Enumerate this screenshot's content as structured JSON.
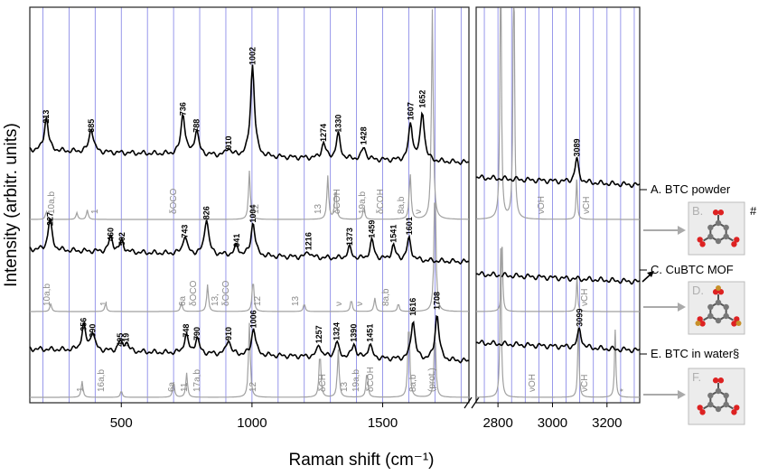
{
  "chart_data": {
    "type": "line",
    "ylabel": "Intensity (arbitr. units)",
    "xlabel": "Raman shift (cm⁻¹)",
    "x_ticks_left": [
      500,
      1000,
      1500
    ],
    "x_ticks_right": [
      2800,
      3000,
      3200
    ],
    "xlim_left": [
      150,
      1830
    ],
    "xlim_right": [
      2720,
      3320
    ],
    "grid": true,
    "panels": [
      {
        "label": "A. BTC powder",
        "baseline": 0.0,
        "exp_peaks": [
          {
            "x": 213,
            "h": 0.22
          },
          {
            "x": 385,
            "h": 0.16
          },
          {
            "x": 736,
            "h": 0.27
          },
          {
            "x": 788,
            "h": 0.16
          },
          {
            "x": 910,
            "h": 0.05
          },
          {
            "x": 1002,
            "h": 0.6
          },
          {
            "x": 1274,
            "h": 0.1
          },
          {
            "x": 1330,
            "h": 0.16
          },
          {
            "x": 1428,
            "h": 0.08
          },
          {
            "x": 1607,
            "h": 0.24
          },
          {
            "x": 1652,
            "h": 0.32
          },
          {
            "x": 3089,
            "h": 0.15
          }
        ],
        "calc_peaks": [
          {
            "x": 213,
            "h": 0.06
          },
          {
            "x": 330,
            "h": 0.05
          },
          {
            "x": 370,
            "h": 0.07
          },
          {
            "x": 990,
            "h": 0.36
          },
          {
            "x": 1290,
            "h": 0.32
          },
          {
            "x": 1320,
            "h": 0.24
          },
          {
            "x": 1428,
            "h": 0.1
          },
          {
            "x": 1605,
            "h": 0.35
          },
          {
            "x": 1690,
            "h": 1.55
          },
          {
            "x": 2810,
            "h": 2.2
          },
          {
            "x": 2858,
            "h": 2.2
          },
          {
            "x": 3089,
            "h": 0.3
          }
        ],
        "peak_labels": [
          "213",
          "385",
          "736",
          "788",
          "910",
          "1002",
          "1274",
          "1330",
          "1428",
          "1607",
          "1652",
          "3089"
        ],
        "mode_labels": [
          "10a,b",
          "1",
          "δOCO",
          "12",
          "13",
          "δCOH",
          "19a,b",
          "δCOH",
          "8a,b",
          "ν",
          "νOH",
          "νCH"
        ]
      },
      {
        "label": "C. CuBTC MOF",
        "baseline": 0.0,
        "exp_peaks": [
          {
            "x": 227,
            "h": 0.2
          },
          {
            "x": 460,
            "h": 0.1
          },
          {
            "x": 502,
            "h": 0.07
          },
          {
            "x": 743,
            "h": 0.12
          },
          {
            "x": 826,
            "h": 0.24
          },
          {
            "x": 941,
            "h": 0.06
          },
          {
            "x": 1004,
            "h": 0.22
          },
          {
            "x": 1216,
            "h": 0.04
          },
          {
            "x": 1373,
            "h": 0.07
          },
          {
            "x": 1459,
            "h": 0.12
          },
          {
            "x": 1541,
            "h": 0.09
          },
          {
            "x": 1601,
            "h": 0.14
          }
        ],
        "calc_peaks": [
          {
            "x": 230,
            "h": 0.06
          },
          {
            "x": 440,
            "h": 0.06
          },
          {
            "x": 730,
            "h": 0.07
          },
          {
            "x": 830,
            "h": 0.2
          },
          {
            "x": 1004,
            "h": 0.25
          },
          {
            "x": 1200,
            "h": 0.06
          },
          {
            "x": 1380,
            "h": 0.09
          },
          {
            "x": 1470,
            "h": 0.1
          },
          {
            "x": 1560,
            "h": 0.06
          },
          {
            "x": 1700,
            "h": 1.0
          },
          {
            "x": 2815,
            "h": 0.5
          },
          {
            "x": 3090,
            "h": 0.25
          }
        ],
        "peak_labels": [
          "227",
          "460",
          "502",
          "743",
          "826",
          "941",
          "1004",
          "1216",
          "1373",
          "1459",
          "1541",
          "1601"
        ],
        "mode_labels": [
          "10a,b",
          "1",
          "6a",
          "δOCO",
          "13,",
          "δOCO",
          "12",
          "13",
          "ν",
          "ν",
          "8a,b",
          "νCH"
        ]
      },
      {
        "label": "E. BTC in water§",
        "baseline": 0.0,
        "exp_peaks": [
          {
            "x": 356,
            "h": 0.16
          },
          {
            "x": 390,
            "h": 0.12
          },
          {
            "x": 495,
            "h": 0.06
          },
          {
            "x": 519,
            "h": 0.06
          },
          {
            "x": 748,
            "h": 0.12
          },
          {
            "x": 790,
            "h": 0.1
          },
          {
            "x": 910,
            "h": 0.1
          },
          {
            "x": 1006,
            "h": 0.18
          },
          {
            "x": 1257,
            "h": 0.08
          },
          {
            "x": 1324,
            "h": 0.1
          },
          {
            "x": 1390,
            "h": 0.09
          },
          {
            "x": 1451,
            "h": 0.09
          },
          {
            "x": 1616,
            "h": 0.26
          },
          {
            "x": 1708,
            "h": 0.3
          },
          {
            "x": 3099,
            "h": 0.12
          }
        ],
        "calc_peaks": [
          {
            "x": 350,
            "h": 0.12
          },
          {
            "x": 500,
            "h": 0.05
          },
          {
            "x": 700,
            "h": 0.12
          },
          {
            "x": 750,
            "h": 0.18
          },
          {
            "x": 990,
            "h": 0.55
          },
          {
            "x": 1260,
            "h": 0.35
          },
          {
            "x": 1330,
            "h": 0.35
          },
          {
            "x": 1440,
            "h": 0.2
          },
          {
            "x": 1600,
            "h": 0.6
          },
          {
            "x": 1700,
            "h": 0.5
          },
          {
            "x": 2810,
            "h": 1.1
          },
          {
            "x": 3095,
            "h": 0.55
          },
          {
            "x": 3230,
            "h": 0.5
          }
        ],
        "peak_labels": [
          "356",
          "390",
          "495",
          "519",
          "748",
          "790",
          "910",
          "1006",
          "1257",
          "1324",
          "1390",
          "1451",
          "1616",
          "1708",
          "3099"
        ],
        "mode_labels": [
          "1",
          "16a,b",
          "6a",
          "11",
          "17a,b",
          "12",
          "δCH",
          "13",
          "19a,b",
          "δCOH",
          "8a,b",
          "νOH",
          "νCH",
          "(prot.)",
          "*"
        ]
      }
    ],
    "molecules": [
      {
        "letter": "B.",
        "mark": "#"
      },
      {
        "letter": "D.",
        "mark": ""
      },
      {
        "letter": "F.",
        "mark": ""
      }
    ],
    "colors": {
      "experimental": "#000000",
      "calculated": "#a0a0a0",
      "grid": "#5555dd",
      "arrow_gray": "#aaaaaa",
      "molecule_bg": "#ececec"
    }
  }
}
